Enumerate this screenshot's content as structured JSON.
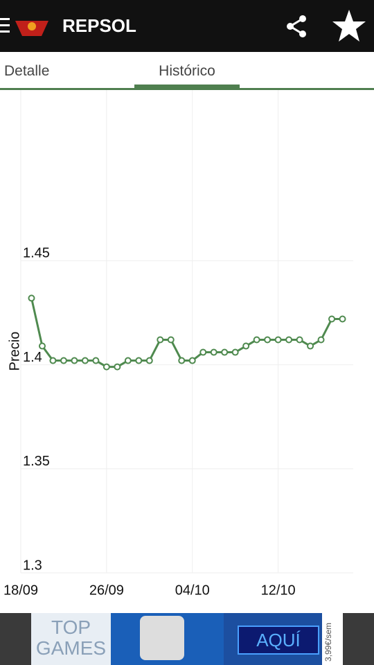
{
  "app_bar": {
    "title": "REPSOL"
  },
  "tabs": [
    "Detalle",
    "Histórico"
  ],
  "chart_data": {
    "type": "line",
    "ylabel": "Precio",
    "x": [
      "19/09",
      "20/09",
      "21/09",
      "22/09",
      "23/09",
      "24/09",
      "25/09",
      "26/09",
      "27/09",
      "28/09",
      "29/09",
      "30/09",
      "01/10",
      "02/10",
      "03/10",
      "04/10",
      "05/10",
      "06/10",
      "07/10",
      "08/10",
      "09/10",
      "10/10",
      "11/10",
      "12/10",
      "13/10",
      "14/10",
      "15/10",
      "16/10",
      "17/10",
      "18/10"
    ],
    "series": [
      {
        "color": "#4f8a4f",
        "values": [
          1.432,
          1.409,
          1.402,
          1.402,
          1.402,
          1.402,
          1.402,
          1.399,
          1.399,
          1.402,
          1.402,
          1.402,
          1.412,
          1.412,
          1.402,
          1.402,
          1.406,
          1.406,
          1.406,
          1.406,
          1.409,
          1.412,
          1.412,
          1.412,
          1.412,
          1.412,
          1.409,
          1.412,
          1.422,
          1.422
        ]
      }
    ],
    "xlim": [
      "18/09",
      "19/10"
    ],
    "xticks": [
      "18/09",
      "26/09",
      "04/10",
      "12/10"
    ],
    "ylim": [
      1.3,
      1.532
    ],
    "yticks": [
      1.3,
      1.35,
      1.4,
      1.45
    ],
    "grid": true
  },
  "ad": {
    "left": [
      "TOP",
      "GAMES"
    ],
    "button": "AQUÍ",
    "price": "3,99€/sem"
  }
}
